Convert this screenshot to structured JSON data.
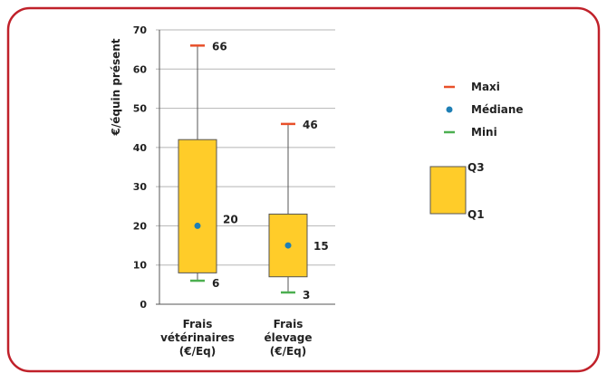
{
  "chart_data": {
    "type": "box",
    "ylabel": "€/équin présent",
    "ylim": [
      0,
      70
    ],
    "yticks": [
      0,
      10,
      20,
      30,
      40,
      50,
      60,
      70
    ],
    "grid": true,
    "legend_position": "right",
    "categories": [
      {
        "label_lines": [
          "Frais",
          "vétérinaires",
          "(€/Eq)"
        ]
      },
      {
        "label_lines": [
          "Frais",
          "élevage",
          "(€/Eq)"
        ]
      }
    ],
    "series": [
      {
        "category": "Frais vétérinaires (€/Eq)",
        "min": 6,
        "q1": 8,
        "median": 20,
        "q3": 42,
        "max": 66,
        "labels": {
          "max": "66",
          "median": "20",
          "min": "6"
        }
      },
      {
        "category": "Frais élevage (€/Eq)",
        "min": 3,
        "q1": 7,
        "median": 15,
        "q3": 23,
        "max": 46,
        "labels": {
          "max": "46",
          "median": "15",
          "min": "3"
        }
      }
    ],
    "legend": {
      "max": "Maxi",
      "median": "Médiane",
      "min": "Mini",
      "q3": "Q3",
      "q1": "Q1"
    },
    "colors": {
      "box": "#ffcc29",
      "box_border": "#555555",
      "max": "#e8502a",
      "median": "#1f7fb5",
      "min": "#4caf50",
      "grid": "#b5b5b5",
      "frame": "#c0212a"
    }
  }
}
